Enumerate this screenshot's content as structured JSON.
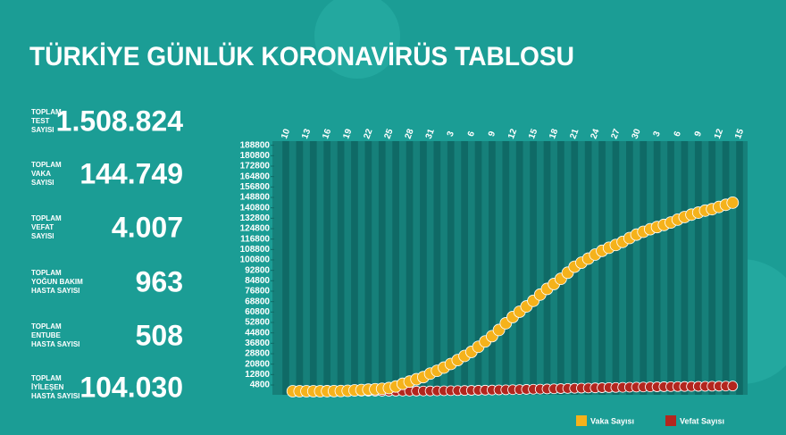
{
  "title": "TÜRKİYE GÜNLÜK KORONAVİRÜS TABLOSU",
  "stats": [
    {
      "label": [
        "TOPLAM",
        "TEST",
        "SAYISI"
      ],
      "value": "1.508.824"
    },
    {
      "label": [
        "TOPLAM",
        "VAKA",
        "SAYISI"
      ],
      "value": "144.749"
    },
    {
      "label": [
        "TOPLAM",
        "VEFAT",
        "SAYISI"
      ],
      "value": "4.007"
    },
    {
      "label": [
        "TOPLAM",
        "YOĞUN BAKIM",
        "HASTA SAYISI"
      ],
      "value": "963"
    },
    {
      "label": [
        "TOPLAM",
        "ENTUBE",
        "HASTA SAYISI"
      ],
      "value": "508"
    },
    {
      "label": [
        "TOPLAM",
        "İYİLEŞEN",
        "HASTA SAYISI"
      ],
      "value": "104.030"
    }
  ],
  "chart_data": {
    "type": "line",
    "categories": [
      "10",
      null,
      null,
      "13",
      null,
      null,
      "16",
      null,
      null,
      "19",
      null,
      null,
      "22",
      null,
      null,
      "25",
      null,
      null,
      "28",
      null,
      null,
      "31",
      null,
      null,
      "3",
      null,
      null,
      "6",
      null,
      null,
      "9",
      null,
      null,
      "12",
      null,
      null,
      "15",
      null,
      null,
      "18",
      null,
      null,
      "21",
      null,
      null,
      "24",
      null,
      null,
      "27",
      null,
      null,
      "30",
      null,
      null,
      "3",
      null,
      null,
      "6",
      null,
      null,
      "9",
      null,
      null,
      "12",
      null,
      null,
      "15"
    ],
    "series": [
      {
        "name": "Vaka Sayısı",
        "color": "#f5b21b",
        "values": [
          null,
          1,
          1,
          5,
          6,
          18,
          47,
          98,
          191,
          359,
          670,
          947,
          1236,
          1529,
          1872,
          2433,
          3629,
          5698,
          7402,
          9217,
          10827,
          13531,
          15679,
          18135,
          20921,
          23934,
          27069,
          30217,
          34109,
          38226,
          42282,
          47029,
          52167,
          56956,
          61049,
          65111,
          69392,
          74193,
          78546,
          82329,
          86306,
          90980,
          95591,
          98674,
          101790,
          104912,
          107773,
          110130,
          112261,
          114653,
          117589,
          120204,
          122392,
          124375,
          126045,
          127659,
          129491,
          131744,
          133721,
          135569,
          137115,
          138657,
          139771,
          141475,
          143114,
          144749,
          null
        ]
      },
      {
        "name": "Vefat Sayısı",
        "color": "#b3261e",
        "values": [
          null,
          null,
          null,
          null,
          null,
          null,
          null,
          1,
          3,
          4,
          9,
          21,
          30,
          37,
          44,
          59,
          75,
          92,
          108,
          131,
          168,
          214,
          277,
          356,
          425,
          501,
          574,
          649,
          725,
          812,
          908,
          1006,
          1101,
          1198,
          1296,
          1403,
          1518,
          1643,
          1769,
          1890,
          2017,
          2140,
          2259,
          2376,
          2491,
          2600,
          2706,
          2805,
          2900,
          2992,
          3081,
          3174,
          3258,
          3336,
          3397,
          3461,
          3520,
          3584,
          3641,
          3689,
          3739,
          3786,
          3841,
          3894,
          3952,
          4007,
          null
        ]
      }
    ],
    "ylim": [
      0,
      188800
    ],
    "yticks": [
      4800,
      12800,
      20800,
      28800,
      36800,
      44800,
      52800,
      60800,
      68800,
      76800,
      84800,
      92800,
      100800,
      108800,
      116800,
      124800,
      132800,
      140800,
      148800,
      156800,
      164800,
      172800,
      180800,
      188800
    ],
    "legend": "bottom-right"
  }
}
